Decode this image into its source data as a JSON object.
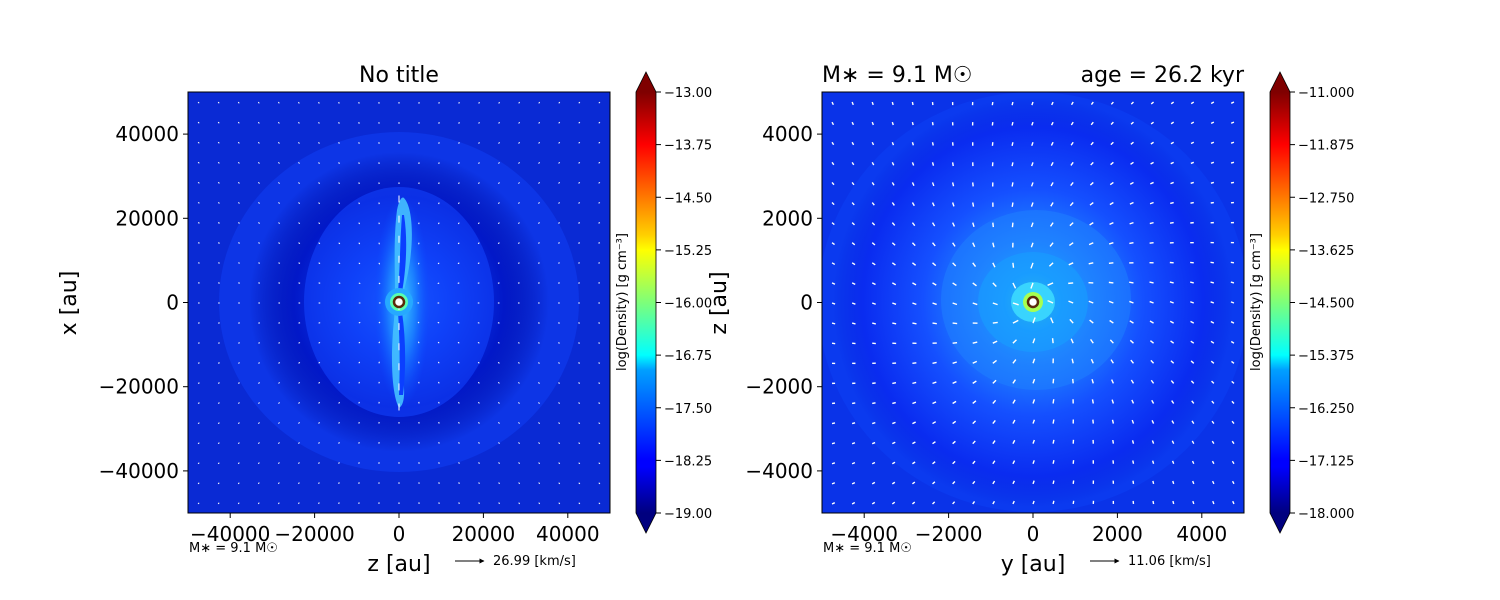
{
  "chart_data": [
    {
      "type": "heatmap",
      "title": "No title",
      "xlabel": "z [au]",
      "ylabel": "x [au]",
      "xlim": [
        -50000,
        50000
      ],
      "ylim": [
        -50000,
        50000
      ],
      "xticks": [
        "−40000",
        "−20000",
        "0",
        "20000",
        "40000"
      ],
      "yticks": [
        "40000",
        "20000",
        "0",
        "−20000",
        "−40000"
      ],
      "xtick_values": [
        -40000,
        -20000,
        0,
        20000,
        40000
      ],
      "ytick_values": [
        40000,
        20000,
        0,
        -20000,
        -40000
      ],
      "colorbar": {
        "label": "log(Density) [g cm⁻³]",
        "range": [
          -19.0,
          -13.0
        ],
        "ticks": [
          "−13.00",
          "−13.75",
          "−14.50",
          "−15.25",
          "−16.00",
          "−16.75",
          "−17.50",
          "−18.25",
          "−19.00"
        ],
        "tick_values": [
          -13.0,
          -13.75,
          -14.5,
          -15.25,
          -16.0,
          -16.75,
          -17.5,
          -18.25,
          -19.0
        ]
      },
      "annotations": {
        "mass_note": "M∗ = 9.1 M☉",
        "velocity_key": "26.99 [km/s]"
      },
      "structure": "elongated filament along x-axis (~±25000 au) with central sink particle"
    },
    {
      "type": "heatmap",
      "title_left": "M∗ = 9.1 M☉",
      "title_right": "age = 26.2 kyr",
      "xlabel": "y [au]",
      "ylabel": "z [au]",
      "xlim": [
        -5000,
        5000
      ],
      "ylim": [
        -5000,
        5000
      ],
      "xticks": [
        "−4000",
        "−2000",
        "0",
        "2000",
        "4000"
      ],
      "yticks": [
        "4000",
        "2000",
        "0",
        "−2000",
        "−4000"
      ],
      "xtick_values": [
        -4000,
        -2000,
        0,
        2000,
        4000
      ],
      "ytick_values": [
        4000,
        2000,
        0,
        -2000,
        -4000
      ],
      "colorbar": {
        "label": "log(Density) [g cm⁻³]",
        "range": [
          -18.0,
          -11.0
        ],
        "ticks": [
          "−11.000",
          "−11.875",
          "−12.750",
          "−13.625",
          "−14.500",
          "−15.375",
          "−16.250",
          "−17.125",
          "−18.000"
        ],
        "tick_values": [
          -11.0,
          -11.875,
          -12.75,
          -13.625,
          -14.5,
          -15.375,
          -16.25,
          -17.125,
          -18.0
        ]
      },
      "annotations": {
        "mass_note": "M∗ = 9.1 M☉",
        "velocity_key": "11.06 [km/s]"
      },
      "structure": "roughly circular envelope with central sink particle"
    }
  ],
  "colors": {
    "low": "#00007f",
    "mid": "#00ffff",
    "high": "#7f0000",
    "arrows": "#ffffff"
  }
}
